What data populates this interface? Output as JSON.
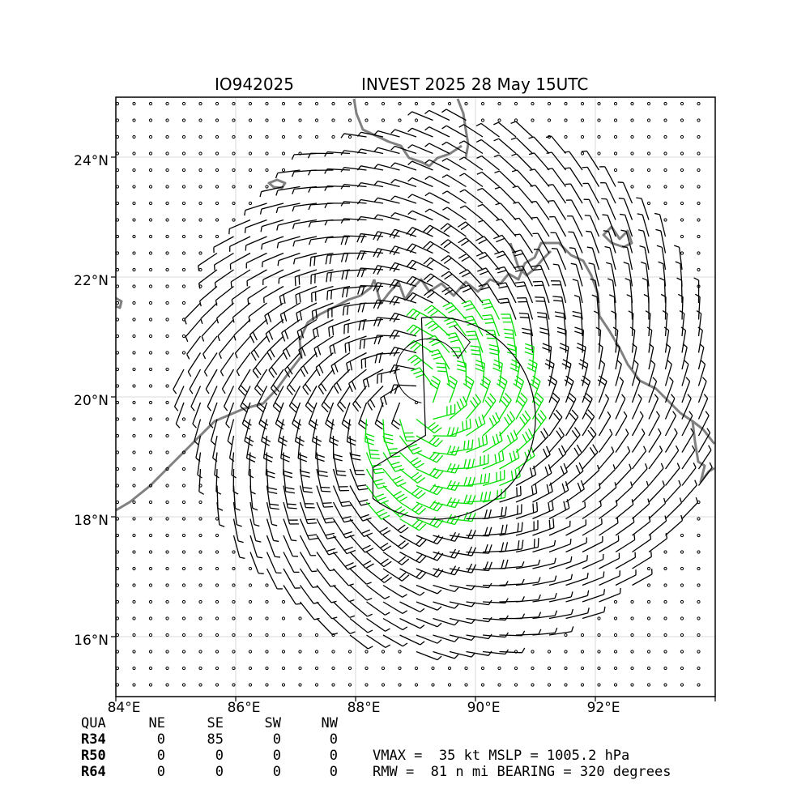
{
  "title": {
    "left": "IO942025",
    "right": "INVEST 2025 28 May 15UTC"
  },
  "map": {
    "lon_range": [
      84,
      94
    ],
    "lat_range": [
      15,
      25
    ],
    "lon_ticks": [
      "84°E",
      "86°E",
      "88°E",
      "90°E",
      "92°E"
    ],
    "lat_ticks": [
      "16°N",
      "18°N",
      "20°N",
      "22°N",
      "24°N"
    ],
    "center": {
      "lon": 89.1,
      "lat": 19.9
    },
    "r34_ne_nm": 0,
    "r34_se_nm": 85,
    "r34_sw_nm": 0,
    "r34_nw_nm": 0,
    "grid": true,
    "colors": {
      "coast": "#808080",
      "barb_weak": "#000000",
      "barb_strong": "#00e000",
      "grid": "#d9d9d9"
    }
  },
  "quadrant_table": {
    "headers": [
      "QUA",
      "NE",
      "SE",
      "SW",
      "NW"
    ],
    "rows": [
      {
        "label": "R34",
        "values": [
          "0",
          "85",
          "0",
          "0"
        ]
      },
      {
        "label": "R50",
        "values": [
          "0",
          "0",
          "0",
          "0"
        ]
      },
      {
        "label": "R64",
        "values": [
          "0",
          "0",
          "0",
          "0"
        ]
      }
    ]
  },
  "summary": {
    "line1": "VMAX =  35 kt MSLP = 1005.2 hPa",
    "line2": "RMW =  81 n mi BEARING = 320 degrees"
  }
}
